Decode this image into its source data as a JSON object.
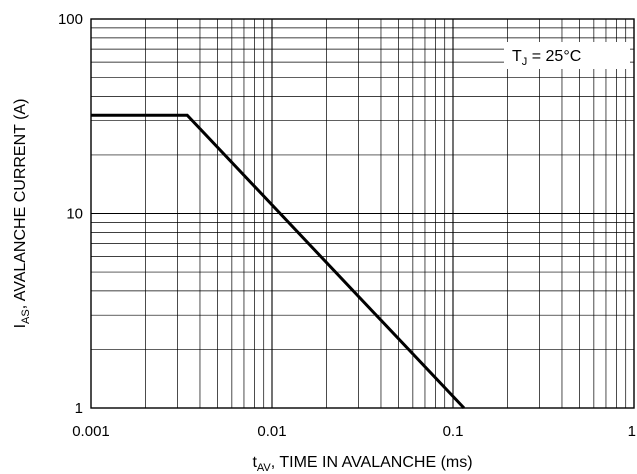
{
  "chart_data": {
    "type": "line",
    "x_scale": "log",
    "y_scale": "log",
    "xlim": [
      0.001,
      1
    ],
    "ylim": [
      1,
      100
    ],
    "grid": true,
    "x_ticks": [
      {
        "value": 0.001,
        "label": "0.001"
      },
      {
        "value": 0.01,
        "label": "0.01"
      },
      {
        "value": 0.1,
        "label": "0.1"
      },
      {
        "value": 1,
        "label": "1"
      }
    ],
    "y_ticks": [
      {
        "value": 1,
        "label": "1"
      },
      {
        "value": 10,
        "label": "10"
      },
      {
        "value": 100,
        "label": "100"
      }
    ],
    "xlabel": {
      "main": "t",
      "sub": "AV",
      "rest": ", TIME IN AVALANCHE (ms)"
    },
    "ylabel": {
      "main": "I",
      "sub": "AS",
      "rest": ", AVALANCHE CURRENT (A)"
    },
    "annotation": {
      "main": "T",
      "sub": "J",
      "rest": " = 25°C"
    },
    "series": [
      {
        "x": [
          0.001,
          0.0034,
          0.115
        ],
        "y": [
          32,
          32,
          1
        ]
      }
    ]
  }
}
